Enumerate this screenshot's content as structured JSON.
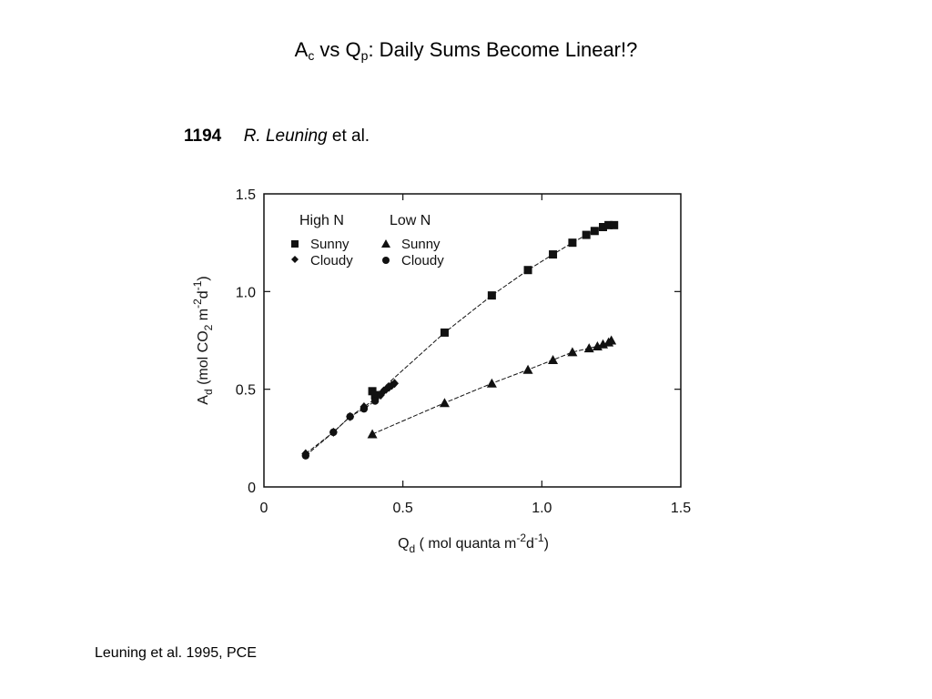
{
  "slide": {
    "title_main": "A",
    "title_sub1": "c",
    "title_mid": " vs Q",
    "title_sub2": "p",
    "title_rest": ": Daily Sums Become Linear!?",
    "citation": "Leuning et al. 1995, PCE"
  },
  "figure_header": {
    "page_number": "1194",
    "author": "R. Leuning",
    "etal": " et al."
  },
  "chart_data": {
    "type": "scatter",
    "xlabel_main": "Q",
    "xlabel_sub": "d",
    "xlabel_rest1": " ( mol quanta m",
    "xlabel_sup1": "-2",
    "xlabel_rest2": "d",
    "xlabel_sup2": "-1",
    "xlabel_end": ")",
    "ylabel_main": "A",
    "ylabel_sub1": "d",
    "ylabel_rest1": " (mol CO",
    "ylabel_sub2": "2",
    "ylabel_rest2": " m",
    "ylabel_sup1": "-2",
    "ylabel_rest3": "d",
    "ylabel_sup2": "-1",
    "ylabel_end": ")",
    "xlim": [
      0,
      1.5
    ],
    "ylim": [
      0,
      1.5
    ],
    "x_ticks": [
      0,
      0.5,
      1.0,
      1.5
    ],
    "x_tick_labels": [
      "0",
      "0.5",
      "1.0",
      "1.5"
    ],
    "y_ticks": [
      0,
      0.5,
      1.0,
      1.5
    ],
    "y_tick_labels": [
      "0",
      "0.5",
      "1.0",
      "1.5"
    ],
    "grid": false,
    "legend": {
      "placement": "top-left",
      "group_headers": [
        "High N",
        "Low N"
      ],
      "entries": [
        {
          "group": "High N",
          "label": "Sunny",
          "marker": "square"
        },
        {
          "group": "High N",
          "label": "Cloudy",
          "marker": "diamond"
        },
        {
          "group": "Low N",
          "label": "Sunny",
          "marker": "triangle"
        },
        {
          "group": "Low N",
          "label": "Cloudy",
          "marker": "circle"
        }
      ]
    },
    "series": [
      {
        "group": "High N",
        "condition": "Sunny",
        "marker": "square",
        "x": [
          0.39,
          0.4,
          0.65,
          0.82,
          0.95,
          1.04,
          1.11,
          1.16,
          1.19,
          1.22,
          1.24,
          1.26
        ],
        "y": [
          0.49,
          0.47,
          0.79,
          0.98,
          1.11,
          1.19,
          1.25,
          1.29,
          1.31,
          1.33,
          1.34,
          1.34
        ]
      },
      {
        "group": "High N",
        "condition": "Cloudy",
        "marker": "diamond",
        "x": [
          0.15,
          0.25,
          0.31,
          0.36,
          0.4,
          0.42,
          0.43,
          0.44,
          0.45,
          0.46,
          0.47
        ],
        "y": [
          0.17,
          0.28,
          0.36,
          0.41,
          0.45,
          0.47,
          0.49,
          0.5,
          0.51,
          0.52,
          0.53
        ]
      },
      {
        "group": "Low N",
        "condition": "Sunny",
        "marker": "triangle",
        "x": [
          0.39,
          0.65,
          0.82,
          0.95,
          1.04,
          1.11,
          1.17,
          1.2,
          1.22,
          1.24,
          1.25
        ],
        "y": [
          0.27,
          0.43,
          0.53,
          0.6,
          0.65,
          0.69,
          0.71,
          0.72,
          0.73,
          0.74,
          0.75
        ]
      },
      {
        "group": "Low N",
        "condition": "Cloudy",
        "marker": "circle",
        "x": [
          0.15,
          0.25,
          0.31,
          0.36,
          0.4
        ],
        "y": [
          0.16,
          0.28,
          0.36,
          0.4,
          0.44
        ]
      }
    ]
  },
  "colors": {
    "ink": "#111111",
    "background": "#ffffff"
  }
}
